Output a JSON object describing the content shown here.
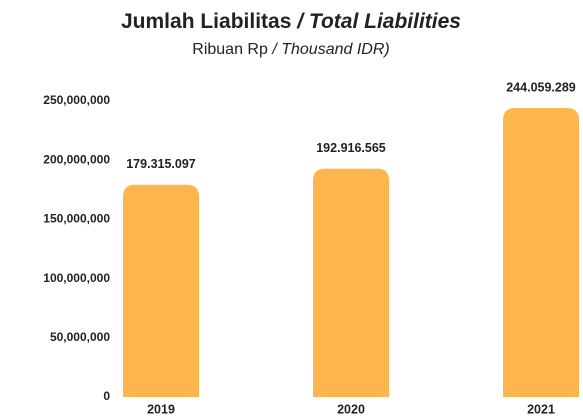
{
  "chart_data": {
    "type": "bar",
    "title": [
      "Jumlah Liabilitas",
      "/ Total Liabilities"
    ],
    "subtitle": [
      "Ribuan Rp",
      "/ Thousand IDR)"
    ],
    "categories": [
      "2019",
      "2020",
      "2021"
    ],
    "values": [
      179315097,
      192916565,
      244059289
    ],
    "value_labels": [
      "179.315.097",
      "192.916.565",
      "244.059.289"
    ],
    "color": "#fdb54e",
    "ylim": [
      0,
      250000000
    ],
    "yticks": [
      0,
      {
        "value": 50000000,
        "label": "50,000,000"
      },
      {
        "value": 100000000,
        "label": "100,000,000"
      },
      {
        "value": 150000000,
        "label": "150,000,000"
      },
      {
        "value": 200000000,
        "label": "200,000,000"
      },
      {
        "value": 250000000,
        "label": "250,000,000"
      }
    ],
    "grid": false
  }
}
